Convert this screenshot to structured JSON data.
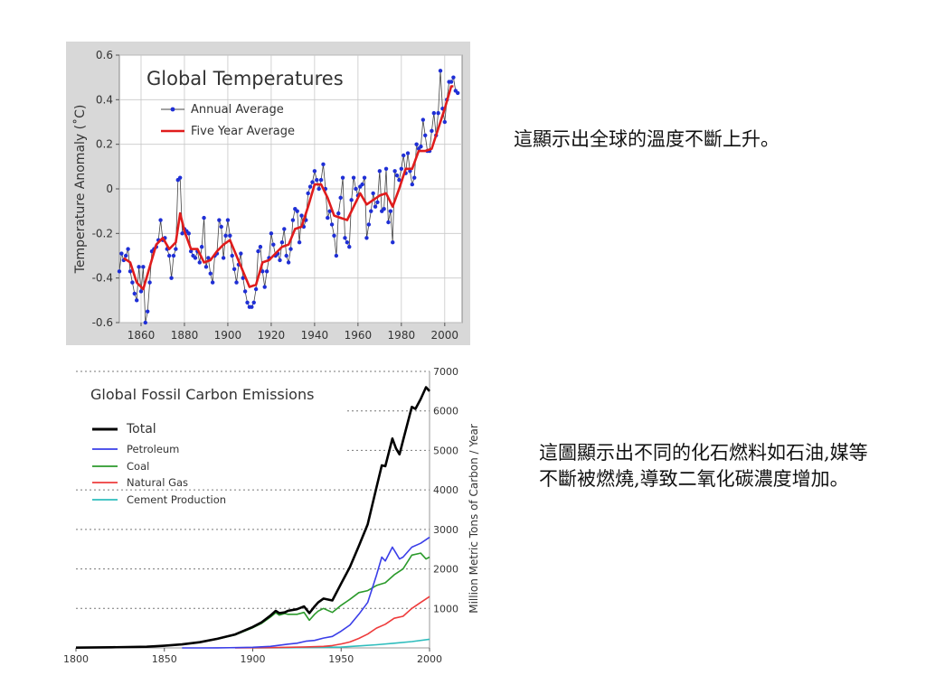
{
  "captions": {
    "temperature": "這顯示出全球的溫度不斷上升。",
    "emissions": "這圖顯示出不同的化石燃料如石油,媒等不斷被燃燒,導致二氧化碳濃度增加。"
  },
  "chart_data": [
    {
      "type": "line",
      "title": "Global Temperatures",
      "xlabel": "",
      "ylabel": "Temperature Anomaly (˚C)",
      "xlim": [
        1850,
        2008
      ],
      "ylim": [
        -0.6,
        0.6
      ],
      "xticks": [
        1860,
        1880,
        1900,
        1920,
        1940,
        1960,
        1980,
        2000
      ],
      "yticks": [
        -0.6,
        -0.4,
        -0.2,
        0,
        0.2,
        0.4,
        0.6
      ],
      "ytick_labels": [
        "-0.6",
        "-0.4",
        "-0.2",
        "0",
        "0.2",
        "0.4",
        "0.6"
      ],
      "grid": true,
      "legend": "top-left",
      "colors": {
        "annual_marker": "#1f2fd6",
        "annual_line": "#444444",
        "five_year": "#e01c1c",
        "panel": "#d8d8d8",
        "plot": "#ffffff"
      },
      "series": [
        {
          "name": "Annual Average",
          "x": [
            1850,
            1851,
            1852,
            1853,
            1854,
            1855,
            1856,
            1857,
            1858,
            1859,
            1860,
            1861,
            1862,
            1863,
            1864,
            1865,
            1866,
            1867,
            1868,
            1869,
            1870,
            1871,
            1872,
            1873,
            1874,
            1875,
            1876,
            1877,
            1878,
            1879,
            1880,
            1881,
            1882,
            1883,
            1884,
            1885,
            1886,
            1887,
            1888,
            1889,
            1890,
            1891,
            1892,
            1893,
            1894,
            1895,
            1896,
            1897,
            1898,
            1899,
            1900,
            1901,
            1902,
            1903,
            1904,
            1905,
            1906,
            1907,
            1908,
            1909,
            1910,
            1911,
            1912,
            1913,
            1914,
            1915,
            1916,
            1917,
            1918,
            1919,
            1920,
            1921,
            1922,
            1923,
            1924,
            1925,
            1926,
            1927,
            1928,
            1929,
            1930,
            1931,
            1932,
            1933,
            1934,
            1935,
            1936,
            1937,
            1938,
            1939,
            1940,
            1941,
            1942,
            1943,
            1944,
            1945,
            1946,
            1947,
            1948,
            1949,
            1950,
            1951,
            1952,
            1953,
            1954,
            1955,
            1956,
            1957,
            1958,
            1959,
            1960,
            1961,
            1962,
            1963,
            1964,
            1965,
            1966,
            1967,
            1968,
            1969,
            1970,
            1971,
            1972,
            1973,
            1974,
            1975,
            1976,
            1977,
            1978,
            1979,
            1980,
            1981,
            1982,
            1983,
            1984,
            1985,
            1986,
            1987,
            1988,
            1989,
            1990,
            1991,
            1992,
            1993,
            1994,
            1995,
            1996,
            1997,
            1998,
            1999,
            2000,
            2001,
            2002,
            2003,
            2004,
            2005,
            2006
          ],
          "values": [
            -0.37,
            -0.29,
            -0.32,
            -0.3,
            -0.27,
            -0.37,
            -0.42,
            -0.47,
            -0.5,
            -0.35,
            -0.46,
            -0.35,
            -0.6,
            -0.55,
            -0.42,
            -0.28,
            -0.27,
            -0.26,
            -0.23,
            -0.14,
            -0.23,
            -0.22,
            -0.27,
            -0.3,
            -0.4,
            -0.3,
            -0.27,
            0.04,
            0.05,
            -0.2,
            -0.18,
            -0.19,
            -0.2,
            -0.28,
            -0.3,
            -0.31,
            -0.28,
            -0.33,
            -0.26,
            -0.13,
            -0.35,
            -0.31,
            -0.38,
            -0.42,
            -0.3,
            -0.29,
            -0.14,
            -0.17,
            -0.31,
            -0.21,
            -0.14,
            -0.21,
            -0.3,
            -0.36,
            -0.42,
            -0.34,
            -0.29,
            -0.4,
            -0.46,
            -0.51,
            -0.53,
            -0.53,
            -0.51,
            -0.45,
            -0.28,
            -0.26,
            -0.37,
            -0.44,
            -0.37,
            -0.31,
            -0.2,
            -0.25,
            -0.3,
            -0.29,
            -0.32,
            -0.24,
            -0.18,
            -0.3,
            -0.33,
            -0.27,
            -0.14,
            -0.09,
            -0.1,
            -0.24,
            -0.12,
            -0.17,
            -0.14,
            -0.02,
            0.01,
            0.03,
            0.08,
            0.04,
            0.0,
            0.04,
            0.11,
            0.0,
            -0.13,
            -0.1,
            -0.16,
            -0.21,
            -0.3,
            -0.11,
            -0.04,
            0.05,
            -0.22,
            -0.24,
            -0.26,
            -0.05,
            0.05,
            0.0,
            -0.03,
            0.01,
            0.02,
            0.05,
            -0.22,
            -0.16,
            -0.1,
            -0.02,
            -0.08,
            -0.06,
            0.08,
            -0.1,
            -0.09,
            0.09,
            -0.15,
            -0.1,
            -0.24,
            0.08,
            0.06,
            0.04,
            0.09,
            0.15,
            0.07,
            0.16,
            0.08,
            0.02,
            0.05,
            0.2,
            0.18,
            0.19,
            0.31,
            0.24,
            0.17,
            0.17,
            0.26,
            0.34,
            0.24,
            0.34,
            0.53,
            0.36,
            0.3,
            0.4,
            0.48,
            0.48,
            0.5,
            0.44,
            0.43
          ]
        },
        {
          "name": "Five Year Average",
          "x": [
            1852,
            1855,
            1858,
            1861,
            1864,
            1867,
            1870,
            1873,
            1876,
            1878,
            1880,
            1883,
            1886,
            1889,
            1892,
            1895,
            1898,
            1901,
            1904,
            1907,
            1910,
            1913,
            1916,
            1919,
            1922,
            1925,
            1928,
            1931,
            1934,
            1937,
            1940,
            1943,
            1946,
            1949,
            1952,
            1955,
            1958,
            1961,
            1964,
            1967,
            1970,
            1973,
            1976,
            1979,
            1982,
            1985,
            1988,
            1991,
            1994,
            1997,
            2000,
            2003,
            2004
          ],
          "values": [
            -0.31,
            -0.33,
            -0.42,
            -0.45,
            -0.35,
            -0.25,
            -0.22,
            -0.27,
            -0.24,
            -0.11,
            -0.19,
            -0.27,
            -0.27,
            -0.33,
            -0.32,
            -0.28,
            -0.25,
            -0.23,
            -0.3,
            -0.37,
            -0.44,
            -0.43,
            -0.33,
            -0.32,
            -0.29,
            -0.26,
            -0.25,
            -0.18,
            -0.17,
            -0.08,
            0.02,
            0.02,
            -0.04,
            -0.12,
            -0.13,
            -0.14,
            -0.08,
            -0.02,
            -0.07,
            -0.05,
            -0.03,
            -0.02,
            -0.08,
            0.0,
            0.09,
            0.09,
            0.17,
            0.17,
            0.18,
            0.27,
            0.36,
            0.46,
            0.46
          ]
        }
      ]
    },
    {
      "type": "line",
      "title": "Global Fossil Carbon Emissions",
      "xlabel": "",
      "ylabel": "Million Metric Tons of Carbon / Year",
      "xlim": [
        1800,
        2000
      ],
      "ylim": [
        0,
        7000
      ],
      "xticks": [
        1800,
        1850,
        1900,
        1950,
        2000
      ],
      "yticks": [
        1000,
        2000,
        3000,
        4000,
        5000,
        6000,
        7000
      ],
      "grid": true,
      "legend": "top-left",
      "colors": {
        "Total": "#000000",
        "Petroleum": "#3a3ee8",
        "Coal": "#2b9a2b",
        "Natural Gas": "#ee3b3b",
        "Cement Production": "#2ebdbd"
      },
      "series": [
        {
          "name": "Total",
          "x": [
            1800,
            1820,
            1840,
            1850,
            1860,
            1870,
            1880,
            1890,
            1900,
            1905,
            1910,
            1913,
            1915,
            1918,
            1920,
            1925,
            1929,
            1932,
            1935,
            1937,
            1940,
            1945,
            1950,
            1955,
            1960,
            1965,
            1970,
            1973,
            1975,
            1979,
            1981,
            1983,
            1985,
            1990,
            1992,
            1995,
            1998,
            2000
          ],
          "values": [
            8,
            15,
            30,
            54,
            90,
            145,
            230,
            340,
            530,
            650,
            820,
            940,
            880,
            900,
            940,
            980,
            1050,
            880,
            1050,
            1150,
            1250,
            1200,
            1630,
            2050,
            2580,
            3130,
            4060,
            4620,
            4600,
            5300,
            5050,
            4900,
            5250,
            6100,
            6050,
            6300,
            6600,
            6500
          ]
        },
        {
          "name": "Petroleum",
          "x": [
            1860,
            1870,
            1880,
            1890,
            1900,
            1910,
            1920,
            1925,
            1930,
            1935,
            1940,
            1945,
            1950,
            1955,
            1960,
            1965,
            1970,
            1973,
            1975,
            1979,
            1981,
            1983,
            1985,
            1990,
            1995,
            2000
          ],
          "values": [
            0,
            1,
            3,
            8,
            16,
            40,
            95,
            120,
            170,
            190,
            250,
            290,
            425,
            580,
            850,
            1150,
            1840,
            2300,
            2200,
            2550,
            2400,
            2250,
            2300,
            2550,
            2650,
            2800
          ]
        },
        {
          "name": "Coal",
          "x": [
            1800,
            1820,
            1840,
            1850,
            1860,
            1870,
            1880,
            1890,
            1900,
            1905,
            1910,
            1913,
            1915,
            1918,
            1920,
            1925,
            1929,
            1932,
            1935,
            1937,
            1940,
            1945,
            1950,
            1955,
            1960,
            1965,
            1970,
            1975,
            1980,
            1985,
            1990,
            1995,
            1998,
            2000
          ],
          "values": [
            8,
            15,
            30,
            54,
            90,
            145,
            225,
            330,
            510,
            620,
            780,
            890,
            830,
            870,
            850,
            850,
            900,
            700,
            850,
            930,
            1000,
            900,
            1080,
            1230,
            1400,
            1450,
            1580,
            1650,
            1850,
            2000,
            2350,
            2400,
            2250,
            2300
          ]
        },
        {
          "name": "Natural Gas",
          "x": [
            1890,
            1900,
            1910,
            1920,
            1930,
            1940,
            1945,
            1950,
            1955,
            1960,
            1965,
            1970,
            1975,
            1980,
            1985,
            1990,
            1995,
            2000
          ],
          "values": [
            3,
            5,
            8,
            15,
            25,
            40,
            60,
            100,
            150,
            240,
            350,
            500,
            600,
            750,
            800,
            1000,
            1150,
            1300
          ]
        },
        {
          "name": "Cement Production",
          "x": [
            1900,
            1920,
            1930,
            1940,
            1950,
            1960,
            1970,
            1980,
            1990,
            2000
          ],
          "values": [
            0,
            5,
            10,
            15,
            20,
            50,
            80,
            120,
            160,
            220
          ]
        }
      ]
    }
  ]
}
